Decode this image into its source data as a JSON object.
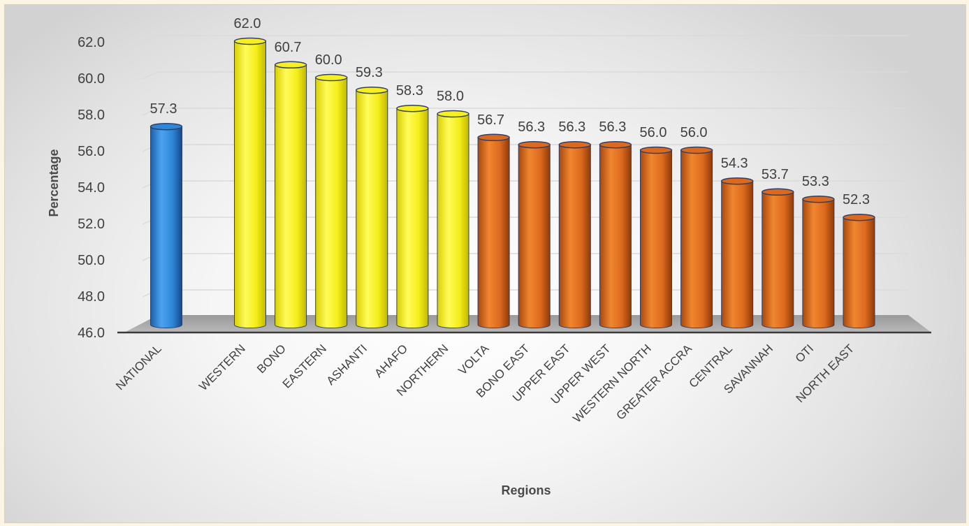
{
  "chart_data": {
    "type": "bar",
    "title": "",
    "xlabel": "Regions",
    "ylabel": "Percentage",
    "ylim": [
      46.0,
      62.0
    ],
    "yticks": [
      "46.0",
      "48.0",
      "50.0",
      "52.0",
      "54.0",
      "56.0",
      "58.0",
      "60.0",
      "62.0"
    ],
    "categories": [
      "NATIONAL",
      "WESTERN",
      "BONO",
      "EASTERN",
      "ASHANTI",
      "AHAFO",
      "NORTHERN",
      "VOLTA",
      "BONO EAST",
      "UPPER EAST",
      "UPPER WEST",
      "WESTERN NORTH",
      "GREATER ACCRA",
      "CENTRAL",
      "SAVANNAH",
      "OTI",
      "NORTH EAST"
    ],
    "values": [
      57.3,
      62.0,
      60.7,
      60.0,
      59.3,
      58.3,
      58.0,
      56.7,
      56.3,
      56.3,
      56.3,
      56.0,
      56.0,
      54.3,
      53.7,
      53.3,
      52.3
    ],
    "value_labels": [
      "57.3",
      "62.0",
      "60.7",
      "60.0",
      "59.3",
      "58.3",
      "58.0",
      "56.7",
      "56.3",
      "56.3",
      "56.3",
      "56.0",
      "56.0",
      "54.3",
      "53.7",
      "53.3",
      "52.3"
    ],
    "bar_groups": [
      "national",
      "high",
      "high",
      "high",
      "high",
      "high",
      "high",
      "low",
      "low",
      "low",
      "low",
      "low",
      "low",
      "low",
      "low",
      "low",
      "low"
    ],
    "colors": {
      "national": "#2e86d6",
      "high": "#f7f01e",
      "low": "#dc6a1e"
    },
    "bar_shape": "cylinder",
    "grid": true,
    "legend": "none"
  }
}
